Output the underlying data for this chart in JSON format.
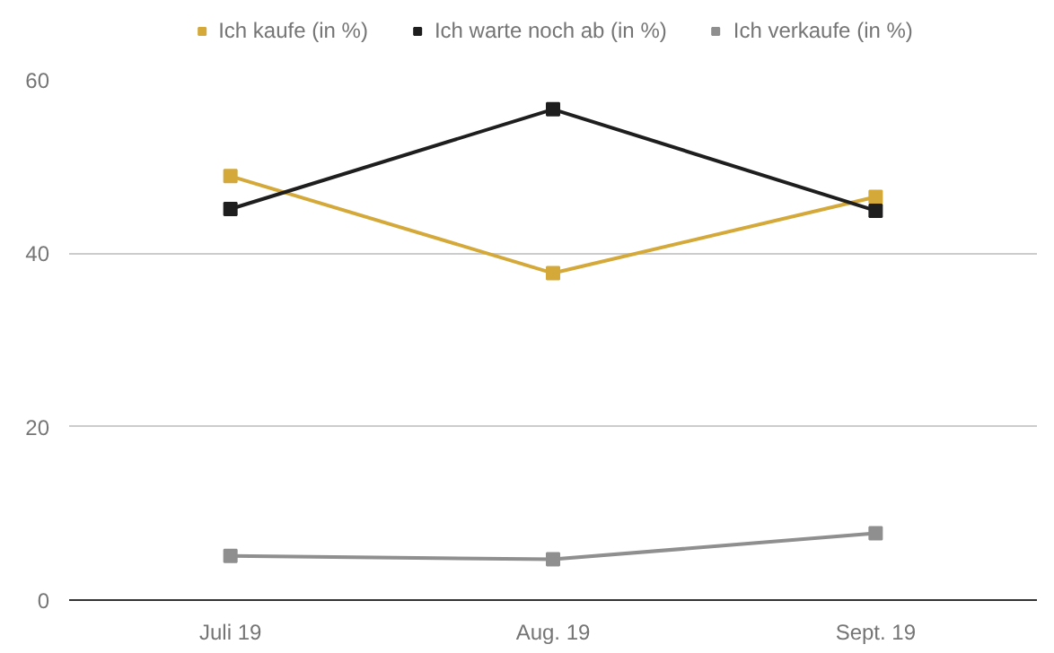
{
  "chart_data": {
    "type": "line",
    "categories": [
      "Juli 19",
      "Aug. 19",
      "Sept. 19"
    ],
    "series": [
      {
        "name": "Ich kaufe (in %)",
        "color": "#d4a93a",
        "values": [
          48.9,
          37.7,
          46.5
        ]
      },
      {
        "name": "Ich warte noch ab (in %)",
        "color": "#1e1e1e",
        "values": [
          45.1,
          56.6,
          44.9
        ]
      },
      {
        "name": "Ich verkaufe (in %)",
        "color": "#8f8f8f",
        "values": [
          5.1,
          4.7,
          7.7
        ]
      }
    ],
    "ylim": [
      0,
      60
    ],
    "yticks": [
      0,
      20,
      40,
      60
    ],
    "grid": "y",
    "legend": "top",
    "marker": "square",
    "line_style": "solid"
  }
}
